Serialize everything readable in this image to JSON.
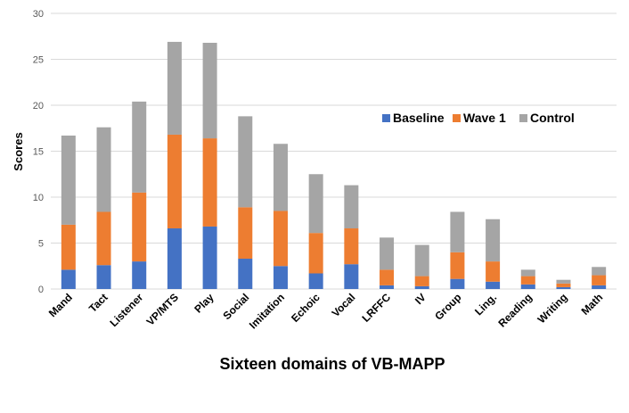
{
  "chart_data": {
    "type": "bar",
    "stacked": true,
    "title": "",
    "xlabel": "Sixteen domains of VB-MAPP",
    "ylabel": "Scores",
    "ylim": [
      0,
      30
    ],
    "yticks": [
      0,
      5,
      10,
      15,
      20,
      25,
      30
    ],
    "grid": true,
    "legend_position": "right-center",
    "categories": [
      "Mand",
      "Tact",
      "Listener",
      "VP/MTS",
      "Play",
      "Social",
      "Imitation",
      "Echoic",
      "Vocal",
      "LRFFC",
      "IV",
      "Group",
      "Ling.",
      "Reading",
      "Writing",
      "Math"
    ],
    "series": [
      {
        "name": "Baseline",
        "color": "#4472C4",
        "values": [
          2.1,
          2.6,
          3.0,
          6.6,
          6.8,
          3.3,
          2.5,
          1.7,
          2.7,
          0.4,
          0.3,
          1.1,
          0.8,
          0.5,
          0.2,
          0.4
        ]
      },
      {
        "name": "Wave 1",
        "color": "#ED7D31",
        "values": [
          4.9,
          5.8,
          7.5,
          10.2,
          9.6,
          5.6,
          6.0,
          4.4,
          3.9,
          1.7,
          1.1,
          2.9,
          2.2,
          0.9,
          0.4,
          1.1
        ]
      },
      {
        "name": "Control",
        "color": "#A5A5A5",
        "values": [
          9.7,
          9.2,
          9.9,
          10.1,
          10.4,
          9.9,
          7.3,
          6.4,
          4.7,
          3.5,
          3.4,
          4.4,
          4.6,
          0.7,
          0.4,
          0.9
        ]
      }
    ]
  }
}
